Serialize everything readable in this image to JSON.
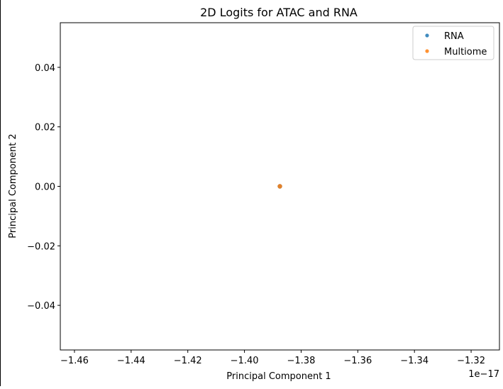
{
  "chart_data": {
    "type": "scatter",
    "title": "2D Logits for ATAC and RNA",
    "xlabel": "Principal Component 1",
    "ylabel": "Principal Component 2",
    "x_offset_label": "1e−17",
    "xlim": [
      -1.465,
      -1.31
    ],
    "ylim": [
      -0.055,
      0.055
    ],
    "x_ticks": [
      -1.46,
      -1.44,
      -1.42,
      -1.4,
      -1.38,
      -1.36,
      -1.34,
      -1.32
    ],
    "x_tick_labels": [
      "−1.46",
      "−1.44",
      "−1.42",
      "−1.40",
      "−1.38",
      "−1.36",
      "−1.34",
      "−1.32"
    ],
    "y_ticks": [
      -0.04,
      -0.02,
      0.0,
      0.02,
      0.04
    ],
    "y_tick_labels": [
      "−0.04",
      "−0.02",
      "0.00",
      "0.02",
      "0.04"
    ],
    "grid": false,
    "legend_position": "top-right",
    "series": [
      {
        "name": "RNA",
        "color": "#1f77b4",
        "points": [
          {
            "x": -1.3875,
            "y": 0.0
          }
        ]
      },
      {
        "name": "Multiome",
        "color": "#ff7f0e",
        "points": [
          {
            "x": -1.3875,
            "y": 0.0
          }
        ]
      }
    ]
  }
}
